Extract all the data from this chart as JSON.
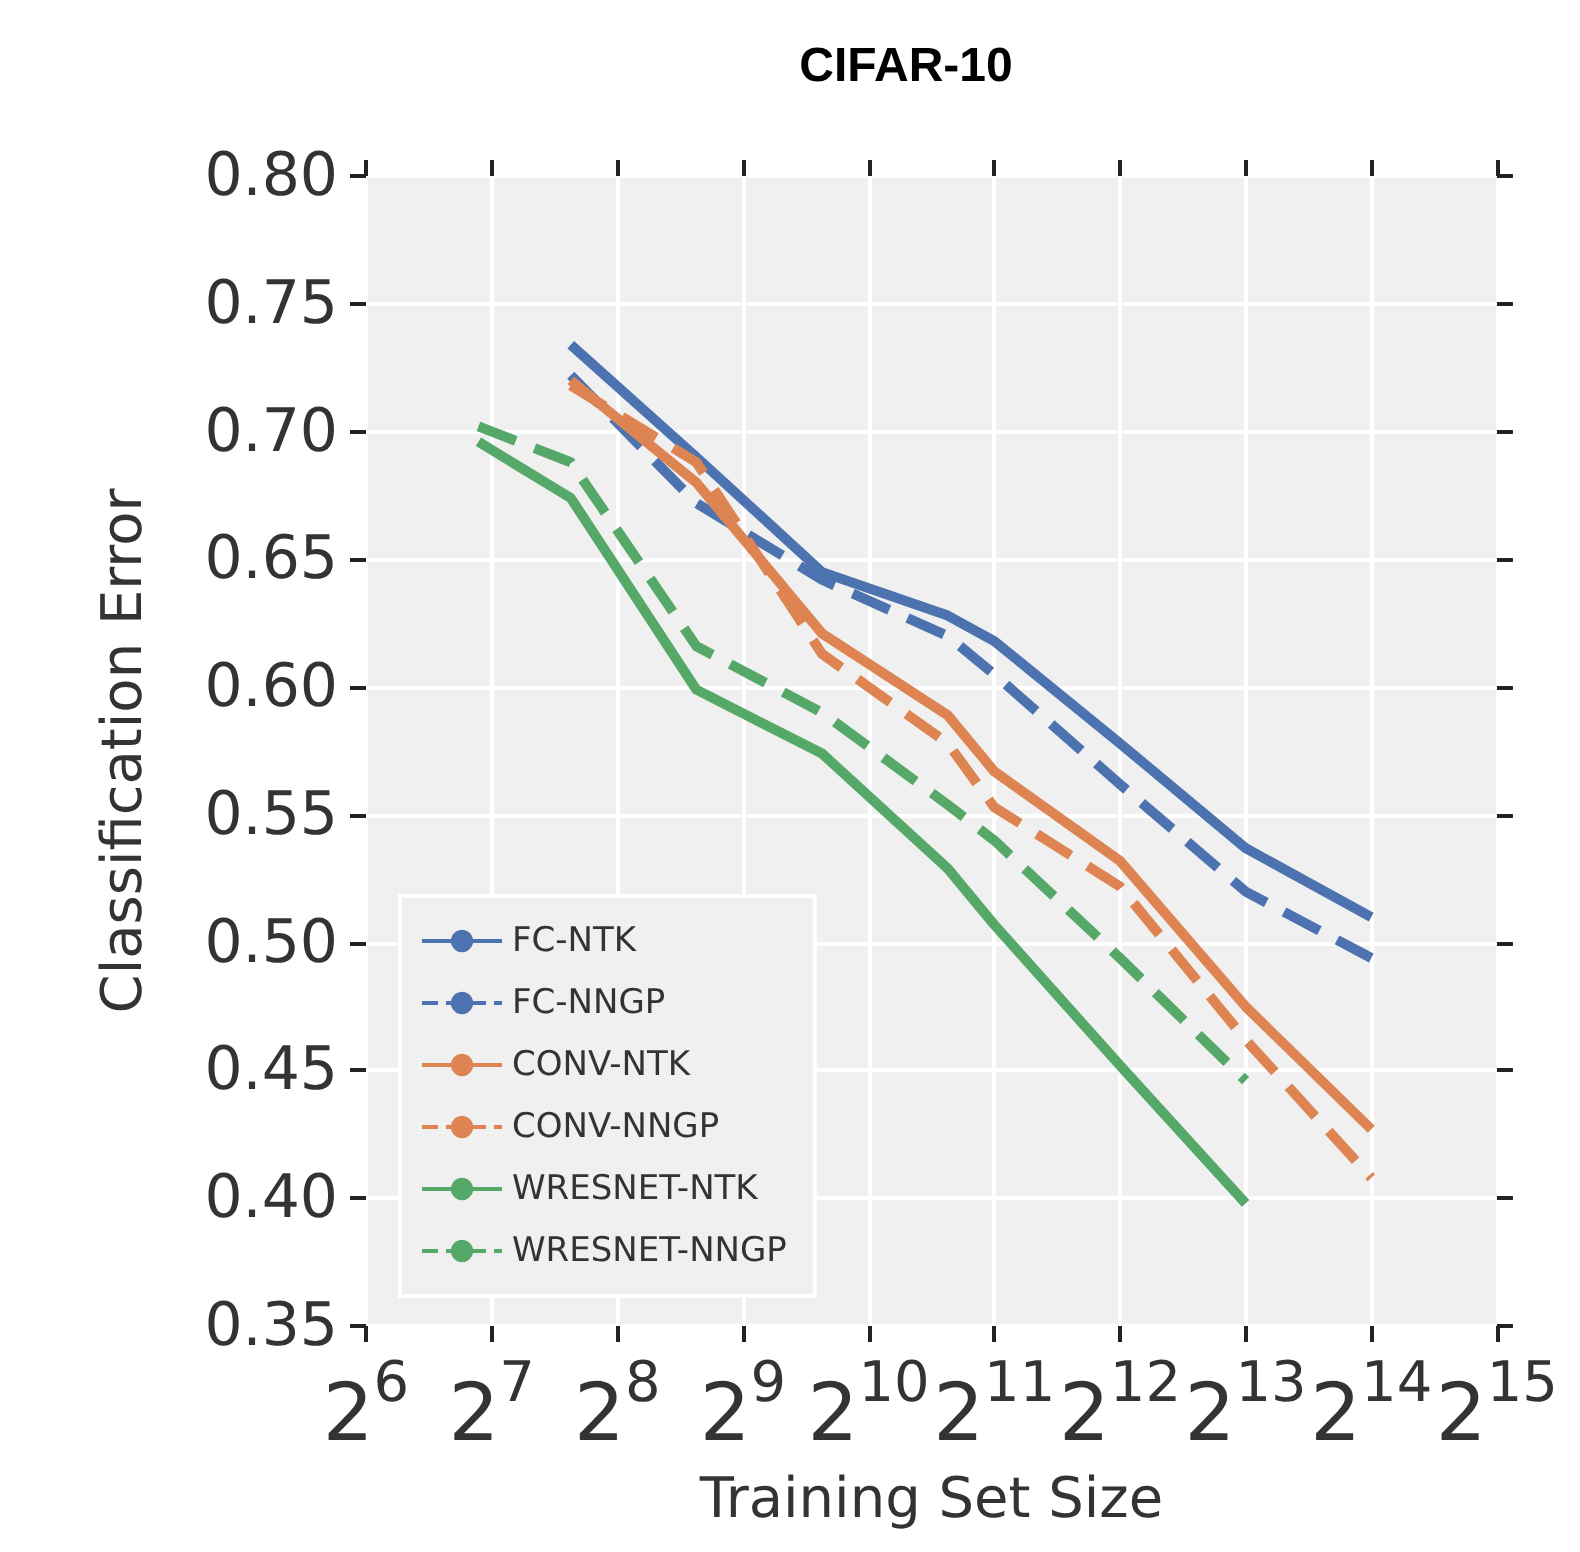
{
  "chart_data": {
    "type": "line",
    "title": "CIFAR-10",
    "xlabel": "Training Set Size",
    "ylabel": "Classification Error",
    "log": "x",
    "xlim": [
      64,
      32768
    ],
    "xticks": [
      {
        "value": 64,
        "label": "2$^{6}$"
      },
      {
        "value": 128,
        "label": "2$^{7}$"
      },
      {
        "value": 256,
        "label": "2$^{8}$"
      },
      {
        "value": 512,
        "label": "2$^{9}$"
      },
      {
        "value": 1024,
        "label": "2$^{10}$"
      },
      {
        "value": 2048,
        "label": "2$^{11}$"
      },
      {
        "value": 4096,
        "label": "2$^{12}$"
      },
      {
        "value": 8192,
        "label": "2$^{13}$"
      },
      {
        "value": 16384,
        "label": "2$^{14}$"
      },
      {
        "value": 32768,
        "label": "2$^{15}$"
      }
    ],
    "ylim": [
      0.35,
      0.8
    ],
    "yticks": [
      0.35,
      {
        "value": 0.4,
        "label": "0.40"
      },
      0.45,
      {
        "value": 0.5,
        "label": "0.50"
      },
      0.55,
      {
        "value": 0.6,
        "label": "0.60"
      },
      0.65,
      {
        "value": 0.7,
        "label": "0.70"
      },
      0.75,
      {
        "value": 0.8,
        "label": "0.80"
      }
    ],
    "grid": true,
    "legend": "bottom left",
    "marker": "none",
    "series": [
      {
        "name": "FC-NTK",
        "color": "#4c72b0",
        "line_style": "solid",
        "x": [
          198,
          396,
          792,
          1584,
          2048,
          4096,
          8192,
          16384
        ],
        "values": [
          0.734,
          0.69,
          0.645,
          0.628,
          0.618,
          0.578,
          0.537,
          0.51
        ]
      },
      {
        "name": "FC-NNGP",
        "color": "#4c72b0",
        "line_style": "dashed",
        "x": [
          198,
          396,
          792,
          1584,
          2048,
          4096,
          8192,
          16384
        ],
        "values": [
          0.722,
          0.672,
          0.642,
          0.62,
          0.605,
          0.562,
          0.52,
          0.494
        ]
      },
      {
        "name": "CONV-NTK",
        "color": "#dd8452",
        "line_style": "solid",
        "x": [
          198,
          396,
          792,
          1584,
          2048,
          4096,
          8192,
          16384
        ],
        "values": [
          0.72,
          0.68,
          0.621,
          0.589,
          0.567,
          0.532,
          0.475,
          0.427
        ]
      },
      {
        "name": "CONV-NNGP",
        "color": "#dd8452",
        "line_style": "dashed",
        "x": [
          198,
          396,
          792,
          1584,
          2048,
          4096,
          8192,
          16384
        ],
        "values": [
          0.718,
          0.688,
          0.613,
          0.578,
          0.553,
          0.522,
          0.462,
          0.408
        ]
      },
      {
        "name": "WRESNET-NTK",
        "color": "#55a868",
        "line_style": "solid",
        "x": [
          119,
          198,
          396,
          792,
          1584,
          2048,
          4096,
          8192
        ],
        "values": [
          0.696,
          0.674,
          0.599,
          0.574,
          0.529,
          0.507,
          0.452,
          0.398
        ]
      },
      {
        "name": "WRESNET-NNGP",
        "color": "#55a868",
        "line_style": "dashed",
        "x": [
          119,
          198,
          396,
          792,
          1584,
          2048,
          4096,
          8192
        ],
        "values": [
          0.702,
          0.688,
          0.616,
          0.59,
          0.554,
          0.54,
          0.494,
          0.446
        ]
      }
    ]
  }
}
